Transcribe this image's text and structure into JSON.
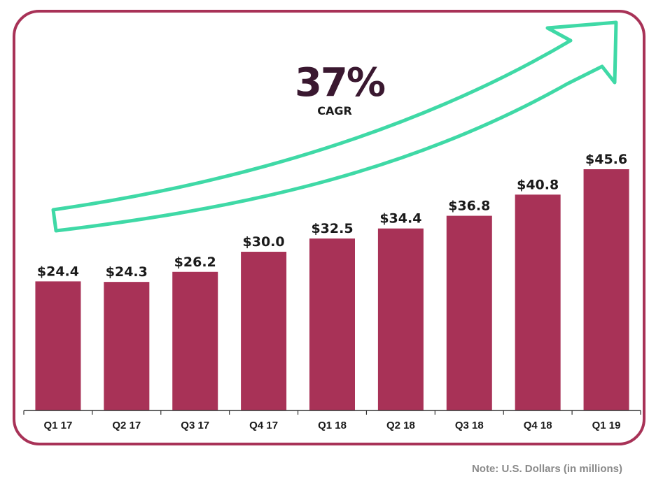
{
  "kpi": {
    "value": "37%",
    "label": "CAGR"
  },
  "note": "Note: U.S. Dollars (in millions)",
  "colors": {
    "bar": "#a83257",
    "frame": "#a83257",
    "arrow": "#3fd9a6",
    "kpi_text": "#3a1830"
  },
  "chart_data": {
    "type": "bar",
    "title": "",
    "xlabel": "",
    "ylabel": "",
    "categories": [
      "Q1 17",
      "Q2 17",
      "Q3 17",
      "Q4 17",
      "Q1 18",
      "Q2 18",
      "Q3 18",
      "Q4 18",
      "Q1 19"
    ],
    "values": [
      24.4,
      24.3,
      26.2,
      30.0,
      32.5,
      34.4,
      36.8,
      40.8,
      45.6
    ],
    "data_labels": [
      "$24.4",
      "$24.3",
      "$26.2",
      "$30.0",
      "$32.5",
      "$34.4",
      "$36.8",
      "$40.8",
      "$45.6"
    ],
    "ylim": [
      0,
      45.6
    ],
    "grid": false,
    "legend": "none"
  }
}
